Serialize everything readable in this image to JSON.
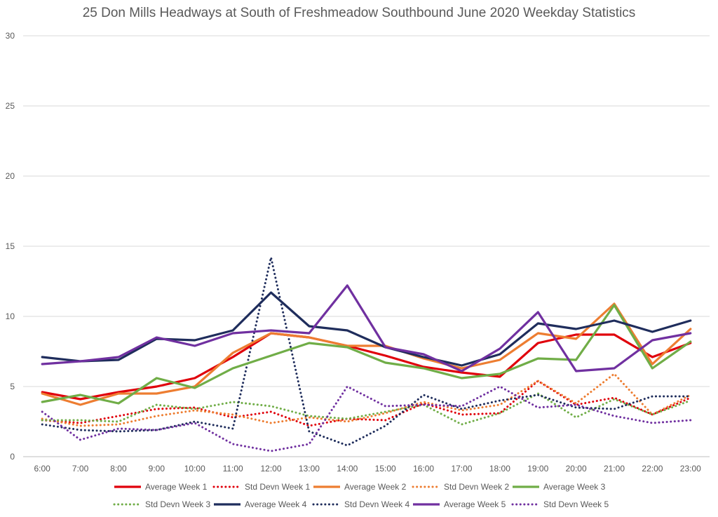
{
  "chart_data": {
    "type": "line",
    "title": "25 Don Mills Headways at South of Freshmeadow Southbound June 2020 Weekday Statistics",
    "xlabel": "",
    "ylabel": "",
    "ylim": [
      0,
      30
    ],
    "yticks": [
      0,
      5,
      10,
      15,
      20,
      25,
      30
    ],
    "grid": "horizontal",
    "legend_position": "bottom",
    "categories": [
      "6:00",
      "7:00",
      "8:00",
      "9:00",
      "10:00",
      "11:00",
      "12:00",
      "13:00",
      "14:00",
      "15:00",
      "16:00",
      "17:00",
      "18:00",
      "19:00",
      "20:00",
      "21:00",
      "22:00",
      "23:00"
    ],
    "series": [
      {
        "name": "Average Week 1",
        "style": "solid",
        "color": "#e0000b",
        "values": [
          4.6,
          4.1,
          4.6,
          5.0,
          5.6,
          7.1,
          8.8,
          8.5,
          7.9,
          7.2,
          6.4,
          6.0,
          5.7,
          8.1,
          8.7,
          8.7,
          7.1,
          8.1
        ]
      },
      {
        "name": "Std Devn Week 1",
        "style": "dotted",
        "color": "#e0000b",
        "values": [
          2.6,
          2.4,
          2.9,
          3.4,
          3.5,
          2.8,
          3.2,
          2.2,
          2.7,
          2.6,
          3.8,
          3.0,
          3.1,
          5.4,
          3.7,
          4.2,
          3.0,
          4.2
        ]
      },
      {
        "name": "Average Week 2",
        "style": "solid",
        "color": "#ed7d31",
        "values": [
          4.5,
          3.7,
          4.5,
          4.5,
          5.0,
          7.4,
          8.8,
          8.5,
          7.9,
          7.9,
          7.0,
          6.3,
          6.9,
          8.8,
          8.4,
          10.9,
          6.6,
          9.1
        ]
      },
      {
        "name": "Std Devn Week 2",
        "style": "dotted",
        "color": "#ed7d31",
        "values": [
          2.7,
          2.2,
          2.3,
          2.9,
          3.3,
          3.0,
          2.4,
          2.8,
          2.5,
          3.1,
          3.9,
          3.3,
          3.7,
          5.4,
          3.8,
          5.9,
          3.0,
          4.4
        ]
      },
      {
        "name": "Average Week 3",
        "style": "solid",
        "color": "#70ad47",
        "values": [
          3.9,
          4.4,
          3.8,
          5.6,
          4.9,
          6.3,
          7.2,
          8.1,
          7.8,
          6.7,
          6.3,
          5.6,
          5.9,
          7.0,
          6.9,
          10.8,
          6.3,
          8.2
        ]
      },
      {
        "name": "Std Devn Week 3",
        "style": "dotted",
        "color": "#70ad47",
        "values": [
          2.6,
          2.6,
          2.5,
          3.7,
          3.4,
          3.9,
          3.6,
          2.9,
          2.7,
          3.2,
          3.7,
          2.3,
          3.1,
          4.5,
          2.8,
          4.1,
          3.0,
          4.0
        ]
      },
      {
        "name": "Average Week 4",
        "style": "solid",
        "color": "#1f2d5c",
        "values": [
          7.1,
          6.8,
          6.9,
          8.4,
          8.3,
          9.0,
          11.7,
          9.3,
          9.0,
          7.8,
          7.1,
          6.5,
          7.3,
          9.5,
          9.1,
          9.7,
          8.9,
          9.7
        ]
      },
      {
        "name": "Std Devn Week 4",
        "style": "dotted",
        "color": "#1f2d5c",
        "values": [
          2.3,
          1.9,
          1.8,
          1.9,
          2.5,
          2.0,
          14.2,
          1.8,
          0.8,
          2.2,
          4.4,
          3.4,
          4.0,
          4.4,
          3.5,
          3.4,
          4.3,
          4.3
        ]
      },
      {
        "name": "Average Week 5",
        "style": "solid",
        "color": "#7030a0",
        "values": [
          6.6,
          6.8,
          7.1,
          8.5,
          7.9,
          8.8,
          9.0,
          8.8,
          12.2,
          7.8,
          7.3,
          6.1,
          7.7,
          10.3,
          6.1,
          6.3,
          8.3,
          8.8
        ]
      },
      {
        "name": "Std Devn Week 5",
        "style": "dotted",
        "color": "#7030a0",
        "values": [
          3.2,
          1.2,
          2.0,
          1.9,
          2.4,
          0.9,
          0.4,
          0.9,
          5.0,
          3.6,
          3.7,
          3.6,
          5.0,
          3.5,
          3.7,
          2.9,
          2.4,
          2.6
        ]
      }
    ]
  }
}
